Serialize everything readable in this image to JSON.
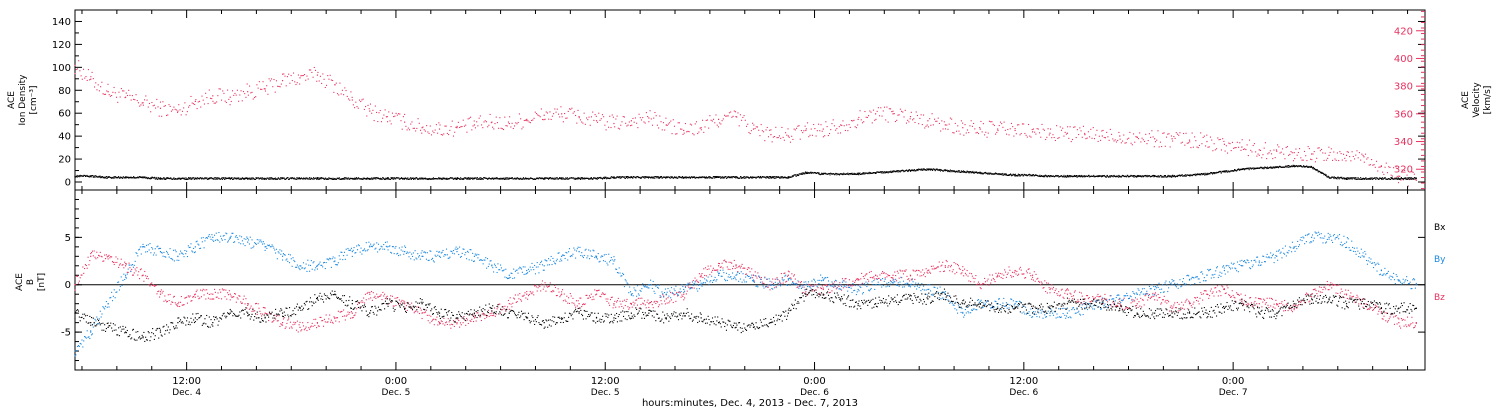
{
  "colors": {
    "velocity": "#e8325f",
    "bx": "#000000",
    "by": "#1a88e0",
    "bz": "#e8325f",
    "density": "#000000",
    "axis": "#000000"
  },
  "top_panel": {
    "ylabel_lines": [
      "ACE",
      "Ion Density",
      "[cm⁻³]"
    ],
    "right_label_lines": [
      "ACE",
      "Velocity",
      "[km/s]"
    ],
    "left_ticks": [
      "0",
      "20",
      "40",
      "60",
      "80",
      "100",
      "120",
      "140"
    ],
    "right_ticks": [
      "320",
      "340",
      "360",
      "380",
      "400",
      "420"
    ]
  },
  "bottom_panel": {
    "ylabel_lines": [
      "ACE",
      "B",
      "[nT]"
    ],
    "left_ticks": [
      "-5",
      "0",
      "5"
    ],
    "legend": [
      "Bx",
      "By",
      "Bz"
    ]
  },
  "x_axis": {
    "tick_labels": [
      {
        "time": "12:00",
        "date": "Dec. 4"
      },
      {
        "time": "0:00",
        "date": "Dec. 5"
      },
      {
        "time": "12:00",
        "date": "Dec. 5"
      },
      {
        "time": "0:00",
        "date": "Dec. 6"
      },
      {
        "time": "12:00",
        "date": "Dec. 6"
      },
      {
        "time": "0:00",
        "date": "Dec. 7"
      }
    ],
    "title": "hours:minutes, Dec.  4, 2013 - Dec.  7, 2013"
  },
  "chart_data": [
    {
      "type": "scatter",
      "panel": "top",
      "x_unit": "hours since Dec. 4 00:00 (2013)",
      "xlim": [
        5.6,
        83.0
      ],
      "ylim_left": [
        0,
        150
      ],
      "ylim_right": [
        305,
        435
      ],
      "series": [
        {
          "name": "Velocity",
          "axis": "right",
          "x": [
            5.6,
            6.5,
            7.5,
            8.5,
            9.5,
            10.5,
            11.5,
            12.5,
            13.5,
            14.5,
            15.5,
            16.5,
            17.5,
            18.5,
            19.5,
            20.5,
            21.5,
            22.5,
            23.5,
            24.5,
            25.5,
            26.5,
            27.5,
            28.5,
            29.5,
            30.5,
            31.5,
            32.5,
            33.5,
            34.5,
            35.5,
            36.5,
            37.5,
            38.5,
            39.5,
            40.5,
            41.5,
            42.5,
            43.5,
            44.5,
            45.5,
            46.5,
            47.5,
            48.5,
            49.5,
            50.5,
            51.5,
            52.5,
            53.5,
            54.5,
            55.5,
            56.5,
            57.5,
            58.5,
            59.5,
            60.5,
            61.5,
            62.5,
            63.5,
            64.5,
            65.5,
            66.5,
            67.5,
            68.5,
            69.5,
            70.5,
            71.5,
            72.5,
            73.5,
            74.5,
            75.5,
            76.5,
            77.5,
            78.5,
            79.5,
            80.5,
            81.5,
            82.5
          ],
          "values": [
            395,
            385,
            376,
            372,
            368,
            364,
            362,
            369,
            373,
            372,
            376,
            378,
            384,
            386,
            388,
            381,
            370,
            362,
            358,
            354,
            350,
            349,
            350,
            352,
            354,
            353,
            356,
            359,
            360,
            358,
            355,
            353,
            355,
            357,
            352,
            348,
            350,
            356,
            358,
            349,
            345,
            344,
            348,
            349,
            352,
            356,
            360,
            360,
            358,
            355,
            352,
            350,
            349,
            349,
            348,
            347,
            346,
            346,
            345,
            344,
            344,
            343,
            342,
            342,
            341,
            340,
            338,
            336,
            334,
            333,
            332,
            331,
            330,
            330,
            329,
            322,
            315,
            312
          ]
        },
        {
          "name": "Ion Density",
          "axis": "left",
          "x": [
            5.6,
            6.5,
            7.5,
            8.5,
            9.5,
            10.5,
            11.5,
            12.5,
            13.5,
            14.5,
            15.5,
            16.5,
            17.5,
            18.5,
            19.5,
            20.5,
            21.5,
            22.5,
            23.5,
            24.5,
            25.5,
            26.5,
            27.5,
            28.5,
            29.5,
            30.5,
            31.5,
            32.5,
            33.5,
            34.5,
            35.5,
            36.5,
            37.5,
            38.5,
            39.5,
            40.5,
            41.5,
            42.5,
            43.5,
            44.5,
            45.5,
            46.5,
            47.5,
            48.5,
            49.5,
            50.5,
            51.5,
            52.5,
            53.5,
            54.5,
            55.5,
            56.5,
            57.5,
            58.5,
            59.5,
            60.5,
            61.5,
            62.5,
            63.5,
            64.5,
            65.5,
            66.5,
            67.5,
            68.5,
            69.5,
            70.5,
            71.5,
            72.5,
            73.5,
            74.5,
            75.5,
            76.5,
            77.5,
            78.5,
            79.5,
            80.5,
            81.5,
            82.5
          ],
          "values": [
            5,
            5,
            4,
            4,
            4,
            3,
            3,
            3,
            3,
            3,
            3,
            3,
            3,
            3,
            3,
            3,
            3,
            3,
            3,
            3,
            3,
            3,
            3,
            3,
            3,
            3,
            3,
            3,
            3,
            3,
            3,
            4,
            4,
            4,
            4,
            4,
            4,
            4,
            4,
            4,
            4,
            4,
            8,
            7,
            7,
            7,
            8,
            9,
            10,
            11,
            10,
            9,
            8,
            7,
            6,
            6,
            5,
            5,
            5,
            5,
            5,
            5,
            5,
            5,
            6,
            7,
            9,
            11,
            12,
            13,
            14,
            13,
            4,
            3,
            3,
            3,
            3,
            3
          ]
        }
      ]
    },
    {
      "type": "scatter",
      "panel": "bottom",
      "x_unit": "hours since Dec. 4 00:00 (2013)",
      "xlim": [
        5.6,
        83.0
      ],
      "ylim": [
        -9,
        10
      ],
      "ylabel": "B [nT]",
      "series": [
        {
          "name": "Bx",
          "x": [
            5.6,
            6.5,
            7.5,
            8.5,
            9.5,
            10.5,
            11.5,
            12.5,
            13.5,
            14.5,
            15.5,
            16.5,
            17.5,
            18.5,
            19.5,
            20.5,
            21.5,
            22.5,
            23.5,
            24.5,
            25.5,
            26.5,
            27.5,
            28.5,
            29.5,
            30.5,
            31.5,
            32.5,
            33.5,
            34.5,
            35.5,
            36.5,
            37.5,
            38.5,
            39.5,
            40.5,
            41.5,
            42.5,
            43.5,
            44.5,
            45.5,
            46.5,
            47.5,
            48.5,
            49.5,
            50.5,
            51.5,
            52.5,
            53.5,
            54.5,
            55.5,
            56.5,
            57.5,
            58.5,
            59.5,
            60.5,
            61.5,
            62.5,
            63.5,
            64.5,
            65.5,
            66.5,
            67.5,
            68.5,
            69.5,
            70.5,
            71.5,
            72.5,
            73.5,
            74.5,
            75.5,
            76.5,
            77.5,
            78.5,
            79.5,
            80.5,
            81.5,
            82.5
          ],
          "values": [
            -3,
            -4,
            -4.5,
            -5,
            -5.5,
            -5,
            -4,
            -3.5,
            -4,
            -3,
            -3,
            -3.5,
            -3,
            -2.5,
            -1.5,
            -1,
            -2,
            -3,
            -2,
            -2.5,
            -2,
            -3,
            -3.5,
            -3,
            -2.5,
            -3,
            -3.5,
            -4,
            -3.5,
            -3,
            -3.5,
            -3.5,
            -3,
            -3,
            -3.5,
            -3,
            -3.5,
            -4,
            -4.5,
            -4.5,
            -4,
            -3,
            -1,
            -1,
            -1.5,
            -2,
            -2,
            -1.5,
            -1.5,
            -1.5,
            -1,
            -2,
            -2,
            -2.5,
            -2.5,
            -2.5,
            -2.5,
            -2,
            -2,
            -2,
            -2.5,
            -3,
            -3,
            -3,
            -3,
            -3,
            -2.5,
            -2,
            -3,
            -3,
            -2,
            -1.5,
            -1.5,
            -2,
            -2,
            -2.5,
            -2.5,
            -2.5
          ]
        },
        {
          "name": "By",
          "x": [
            5.6,
            6.5,
            7.5,
            8.5,
            9.5,
            10.5,
            11.5,
            12.5,
            13.5,
            14.5,
            15.5,
            16.5,
            17.5,
            18.5,
            19.5,
            20.5,
            21.5,
            22.5,
            23.5,
            24.5,
            25.5,
            26.5,
            27.5,
            28.5,
            29.5,
            30.5,
            31.5,
            32.5,
            33.5,
            34.5,
            35.5,
            36.5,
            37.5,
            38.5,
            39.5,
            40.5,
            41.5,
            42.5,
            43.5,
            44.5,
            45.5,
            46.5,
            47.5,
            48.5,
            49.5,
            50.5,
            51.5,
            52.5,
            53.5,
            54.5,
            55.5,
            56.5,
            57.5,
            58.5,
            59.5,
            60.5,
            61.5,
            62.5,
            63.5,
            64.5,
            65.5,
            66.5,
            67.5,
            68.5,
            69.5,
            70.5,
            71.5,
            72.5,
            73.5,
            74.5,
            75.5,
            76.5,
            77.5,
            78.5,
            79.5,
            80.5,
            81.5,
            82.5
          ],
          "values": [
            -7,
            -5,
            -2,
            1,
            4,
            3.5,
            3,
            4,
            5,
            5,
            4.5,
            4,
            3,
            2,
            2,
            2.5,
            3.5,
            4,
            4,
            3.5,
            3,
            3,
            3.5,
            3,
            2,
            1,
            1.5,
            2,
            3,
            3.5,
            3,
            2.5,
            -1,
            0,
            -1,
            -0.5,
            0,
            1,
            1,
            0.5,
            0,
            0.5,
            0,
            0.5,
            0,
            -0.5,
            0,
            0.5,
            0,
            -0.5,
            -1,
            -3,
            -2,
            -2,
            -2,
            -3,
            -3,
            -3,
            -2.5,
            -2,
            -1.5,
            -1,
            -0.5,
            0,
            0.5,
            1,
            1.5,
            2,
            2.5,
            3,
            4,
            5,
            5,
            4.5,
            3,
            1.5,
            0.5,
            0
          ]
        },
        {
          "name": "Bz",
          "x": [
            5.6,
            6.5,
            7.5,
            8.5,
            9.5,
            10.5,
            11.5,
            12.5,
            13.5,
            14.5,
            15.5,
            16.5,
            17.5,
            18.5,
            19.5,
            20.5,
            21.5,
            22.5,
            23.5,
            24.5,
            25.5,
            26.5,
            27.5,
            28.5,
            29.5,
            30.5,
            31.5,
            32.5,
            33.5,
            34.5,
            35.5,
            36.5,
            37.5,
            38.5,
            39.5,
            40.5,
            41.5,
            42.5,
            43.5,
            44.5,
            45.5,
            46.5,
            47.5,
            48.5,
            49.5,
            50.5,
            51.5,
            52.5,
            53.5,
            54.5,
            55.5,
            56.5,
            57.5,
            58.5,
            59.5,
            60.5,
            61.5,
            62.5,
            63.5,
            64.5,
            65.5,
            66.5,
            67.5,
            68.5,
            69.5,
            70.5,
            71.5,
            72.5,
            73.5,
            74.5,
            75.5,
            76.5,
            77.5,
            78.5,
            79.5,
            80.5,
            81.5,
            82.5
          ],
          "values": [
            0,
            3,
            3,
            2,
            1,
            -1,
            -2,
            -1,
            -1,
            -1,
            -2,
            -3,
            -4,
            -4.5,
            -4,
            -3.5,
            -3,
            -1,
            -1.5,
            -2,
            -3,
            -4,
            -4,
            -3.5,
            -3,
            -2,
            -1,
            0,
            -1,
            -2,
            -1,
            -2,
            -2,
            -2,
            -1.5,
            -1,
            1,
            2,
            2,
            1,
            0,
            1,
            -0.5,
            -0.5,
            0,
            0.5,
            1,
            1,
            1,
            1.5,
            2,
            1.5,
            0,
            1,
            1.5,
            1,
            -0.5,
            -1,
            -1.5,
            -1.5,
            -2,
            -2,
            -1,
            -2.5,
            -2,
            -1,
            -0.5,
            -1.5,
            -2,
            -2,
            -2.5,
            -1,
            0,
            -1,
            -2,
            -3,
            -4,
            -4
          ]
        }
      ]
    }
  ]
}
